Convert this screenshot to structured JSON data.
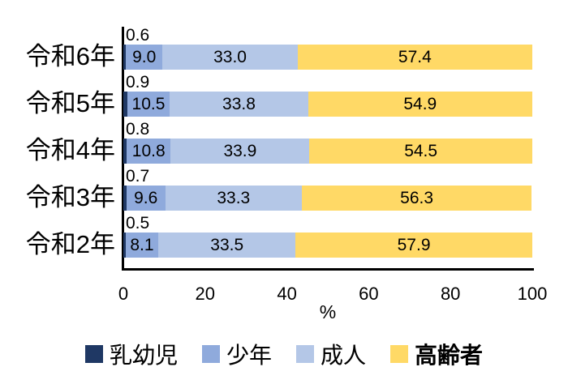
{
  "chart_data": {
    "type": "bar",
    "orientation": "horizontal",
    "stacked": true,
    "title": "",
    "categories": [
      "令和6年",
      "令和5年",
      "令和4年",
      "令和3年",
      "令和2年"
    ],
    "series": [
      {
        "key": "infant",
        "name": "乳幼児",
        "color": "#1F3864",
        "values": [
          0.6,
          0.9,
          0.8,
          0.7,
          0.5
        ],
        "labels": [
          "0.6",
          "0.9",
          "0.8",
          "0.7",
          "0.5"
        ],
        "label_position": "above",
        "legend_bold": false
      },
      {
        "key": "youth",
        "name": "少年",
        "color": "#8FAADC",
        "values": [
          9.0,
          10.5,
          10.8,
          9.6,
          8.1
        ],
        "labels": [
          "9.0",
          "10.5",
          "10.8",
          "9.6",
          "8.1"
        ],
        "label_position": "inside",
        "legend_bold": false
      },
      {
        "key": "adult",
        "name": "成人",
        "color": "#B4C7E7",
        "values": [
          33.0,
          33.8,
          33.9,
          33.3,
          33.5
        ],
        "labels": [
          "33.0",
          "33.8",
          "33.9",
          "33.3",
          "33.5"
        ],
        "label_position": "inside",
        "legend_bold": false
      },
      {
        "key": "elderly",
        "name": "高齢者",
        "color": "#FFD966",
        "values": [
          57.4,
          54.9,
          54.5,
          56.3,
          57.9
        ],
        "labels": [
          "57.4",
          "54.9",
          "54.5",
          "56.3",
          "57.9"
        ],
        "label_position": "inside",
        "legend_bold": true
      }
    ],
    "x_axis": {
      "min": 0,
      "max": 100,
      "ticks": [
        0,
        20,
        40,
        60,
        80,
        100
      ],
      "label": "%"
    },
    "legend_position": "bottom",
    "grid": false,
    "axis_color": "#000000",
    "text_color": "#000000",
    "background_color": "#FFFFFF"
  }
}
